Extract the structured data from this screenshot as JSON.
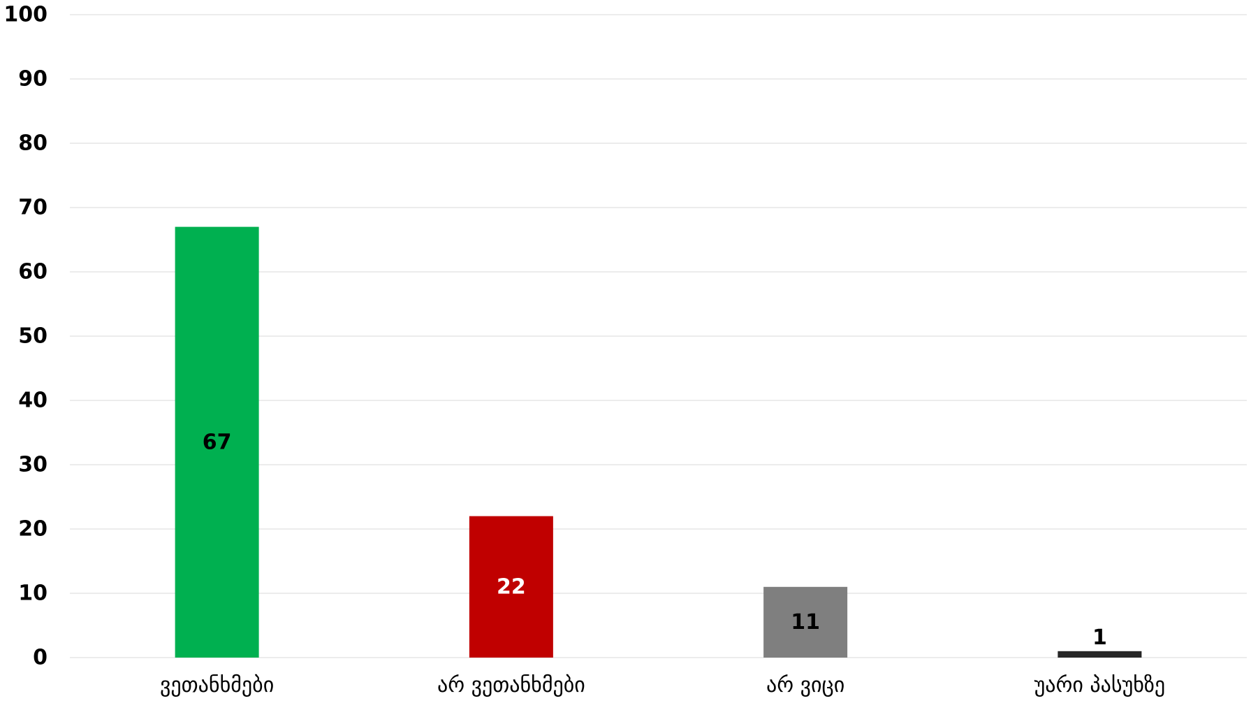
{
  "chart_data": {
    "type": "bar",
    "categories": [
      "ვეთანხმები",
      "არ ვეთანხმები",
      "არ ვიცი",
      "უარი პასუხზე"
    ],
    "values": [
      67,
      22,
      11,
      1
    ],
    "data_labels": [
      "67",
      "22",
      "11",
      "1"
    ],
    "title": "",
    "xlabel": "",
    "ylabel": "",
    "ylim": [
      0,
      100
    ],
    "yticks": [
      0,
      10,
      20,
      30,
      40,
      50,
      60,
      70,
      80,
      90,
      100
    ],
    "grid": true,
    "legend": "none",
    "colors": [
      "#00b050",
      "#c00000",
      "#7f7f7f",
      "#262626"
    ],
    "label_colors": [
      "#000000",
      "#ffffff",
      "#000000",
      "#000000"
    ],
    "label_positions": [
      "inside",
      "inside",
      "inside",
      "above"
    ],
    "gridline_color": "#e6e6e6"
  }
}
